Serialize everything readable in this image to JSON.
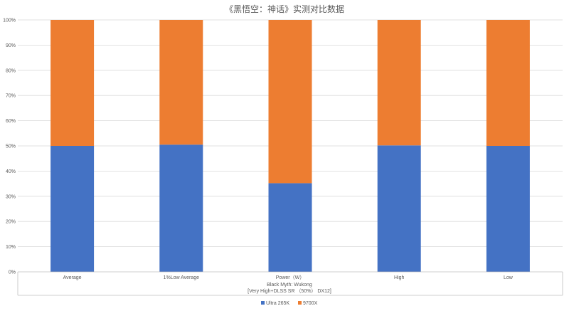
{
  "chart_data": {
    "type": "bar",
    "stacked": true,
    "percent_stacked": true,
    "title": "《黑悟空：神话》实测对比数据",
    "xlabel": [
      "Black Myth: Wukong",
      "[Very High+DLSS SR （50%） DX12]"
    ],
    "ylabel": "",
    "categories": [
      "Average",
      "1%Low Average",
      "Power（W）",
      "High",
      "Low"
    ],
    "series": [
      {
        "name": "Ultra 265K",
        "color": "#4472C4",
        "values": [
          50.0,
          50.5,
          35.2,
          50.2,
          50.0
        ]
      },
      {
        "name": "9700X",
        "color": "#ED7D31",
        "values": [
          50.0,
          49.5,
          64.8,
          49.8,
          50.0
        ]
      }
    ],
    "ylim": [
      0,
      100
    ],
    "yticks": [
      "0%",
      "10%",
      "20%",
      "30%",
      "40%",
      "50%",
      "60%",
      "70%",
      "80%",
      "90%",
      "100%"
    ],
    "grid": true,
    "legend_position": "bottom",
    "colors": {
      "gridline": "#D9D9D9",
      "axis": "#BFBFBF",
      "text": "#595959"
    }
  }
}
